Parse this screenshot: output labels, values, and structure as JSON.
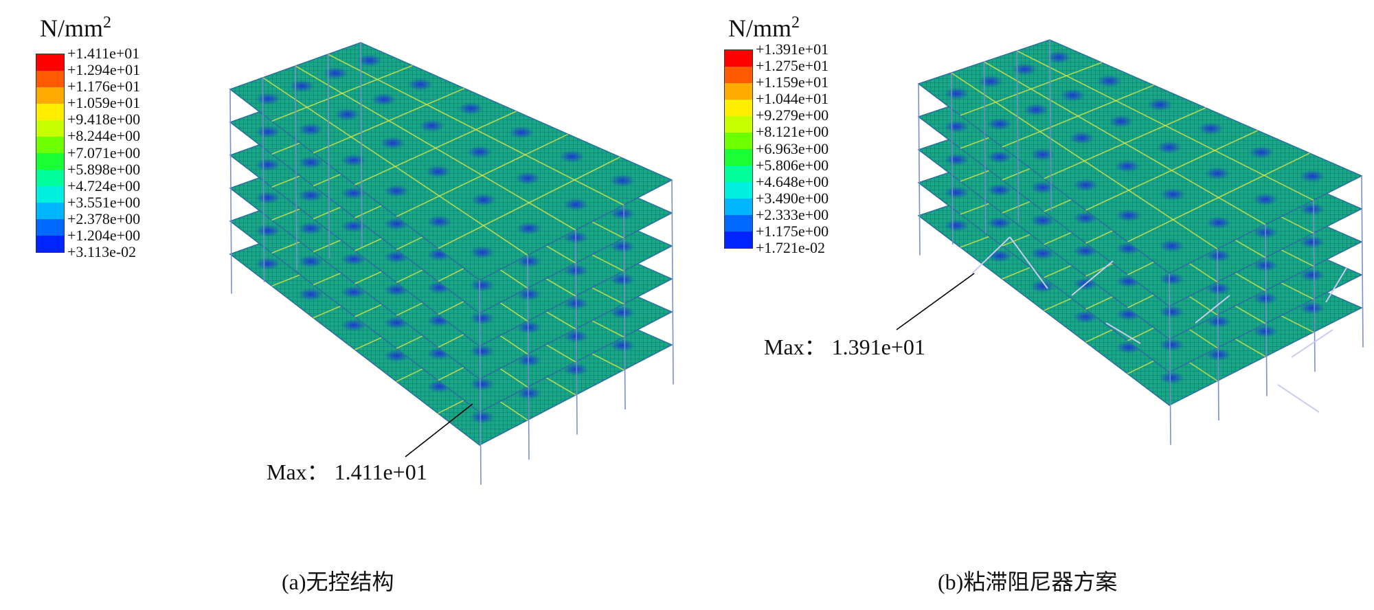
{
  "colors": [
    "#ff0000",
    "#ff5a00",
    "#ffaa00",
    "#ffee00",
    "#c8ff00",
    "#6eff00",
    "#1aff33",
    "#00ff9a",
    "#00f0e0",
    "#00b6ff",
    "#0068ff",
    "#0024ff",
    "#0000ff"
  ],
  "panel_a": {
    "unit_main": "N/mm",
    "unit_sup": "2",
    "legend": [
      "+1.411e+01",
      "+1.294e+01",
      "+1.176e+01",
      "+1.059e+01",
      "+9.418e+00",
      "+8.244e+00",
      "+7.071e+00",
      "+5.898e+00",
      "+4.724e+00",
      "+3.551e+00",
      "+2.378e+00",
      "+1.204e+00",
      "+3.113e-02"
    ],
    "max_label": "Max：  1.411e+01",
    "caption": "(a)无控结构"
  },
  "panel_b": {
    "unit_main": "N/mm",
    "unit_sup": "2",
    "legend": [
      "+1.391e+01",
      "+1.275e+01",
      "+1.159e+01",
      "+1.044e+01",
      "+9.279e+00",
      "+8.121e+00",
      "+6.963e+00",
      "+5.806e+00",
      "+4.648e+00",
      "+3.490e+00",
      "+2.333e+00",
      "+1.175e+00",
      "+1.721e-02"
    ],
    "max_label": "Max：  1.391e+01",
    "caption": "(b)粘滞阻尼器方案"
  }
}
